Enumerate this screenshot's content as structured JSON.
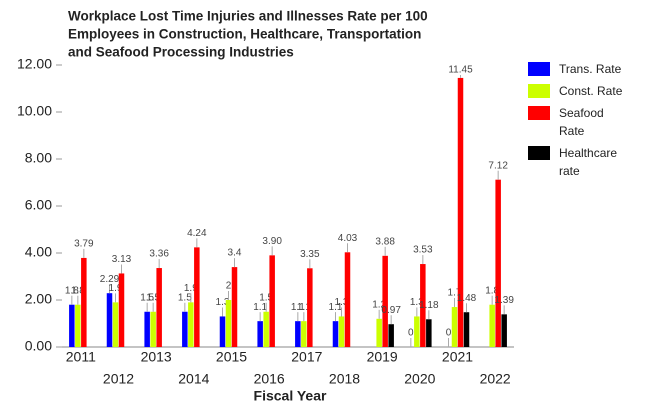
{
  "chart_data": {
    "type": "bar",
    "title": [
      "Workplace Lost Time Injuries and Illnesses Rate per 100",
      "Employees in Construction, Healthcare, Transportation",
      "and Seafood Processing Industries"
    ],
    "x_label": "Fiscal Year",
    "categories": [
      "2011",
      "2012",
      "2013",
      "2014",
      "2015",
      "2016",
      "2017",
      "2018",
      "2019",
      "2020",
      "2021",
      "2022"
    ],
    "series": [
      {
        "name": "Trans. Rate",
        "color": "#0000ff",
        "values": [
          1.8,
          2.29,
          1.5,
          1.5,
          1.3,
          1.1,
          1.1,
          1.1,
          null,
          0,
          0,
          null
        ]
      },
      {
        "name": "Const. Rate",
        "color": "#ccff00",
        "values": [
          1.8,
          1.9,
          1.5,
          1.9,
          2.0,
          1.5,
          1.1,
          1.3,
          1.2,
          1.3,
          1.7,
          1.8
        ]
      },
      {
        "name": "Seafood Rate",
        "color": "#ff0000",
        "values": [
          3.79,
          3.13,
          3.36,
          4.24,
          3.4,
          3.9,
          3.35,
          4.03,
          3.88,
          3.53,
          11.45,
          7.12
        ],
        "value_labels": [
          "3.79",
          "3.13",
          "3.36",
          "4.24",
          "3.4",
          "3.90",
          "3.35",
          "4.03",
          "3.88",
          "3.53",
          "11.45",
          "7.12"
        ]
      },
      {
        "name": "Healthcare rate",
        "color": "#000000",
        "values": [
          null,
          null,
          null,
          null,
          null,
          null,
          null,
          null,
          0.97,
          1.18,
          1.48,
          1.39
        ]
      }
    ],
    "ylim": [
      0,
      12
    ],
    "yticks": [
      {
        "value": 0,
        "label": "0.00"
      },
      {
        "value": 2,
        "label": "2.00"
      },
      {
        "value": 4,
        "label": "4.00"
      },
      {
        "value": 6,
        "label": "6.00"
      },
      {
        "value": 8,
        "label": "8.00"
      },
      {
        "value": 10,
        "label": "10.00"
      },
      {
        "value": 12,
        "label": "12.00"
      }
    ],
    "legend": "right"
  }
}
